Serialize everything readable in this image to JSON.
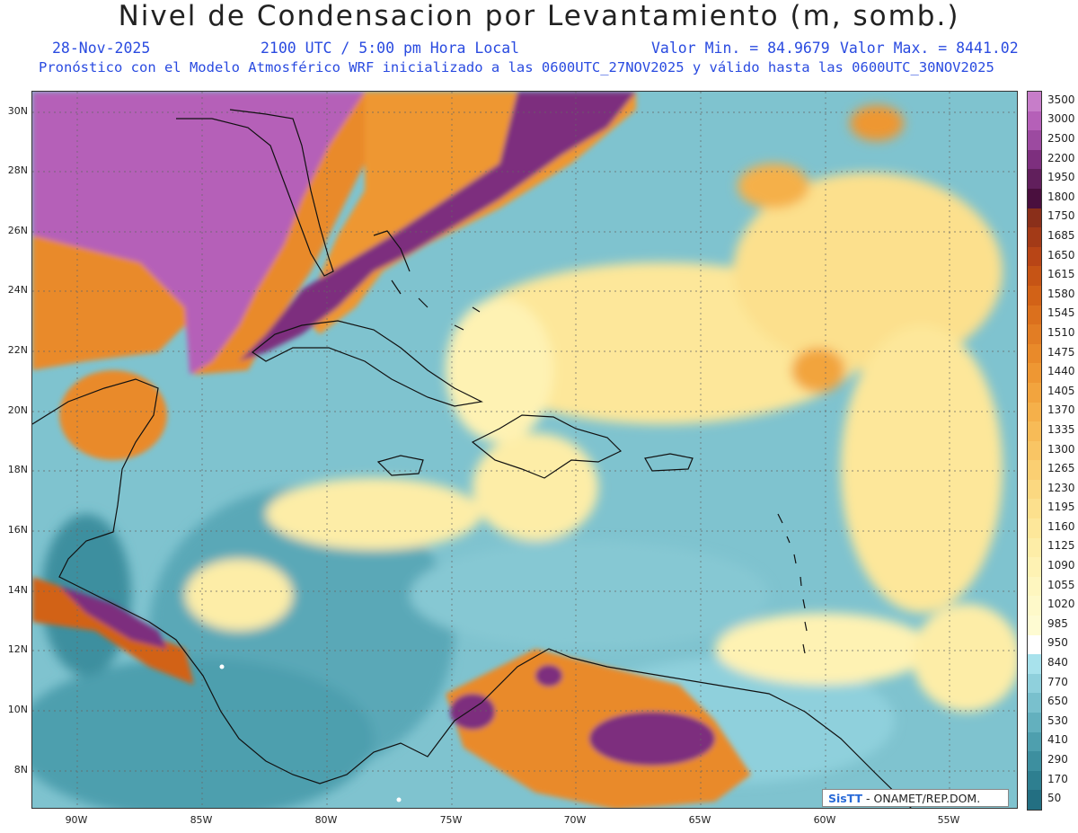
{
  "title": "Nivel de Condensacion por Levantamiento (m, somb.)",
  "header": {
    "date": "28-Nov-2025",
    "time": "2100 UTC / 5:00 pm Hora Local",
    "vmin": "Valor Min. = 84.9679",
    "vmax": "Valor Max. = 8441.02",
    "subtitle": "Pronóstico con el Modelo Atmosférico WRF inicializado a las 0600UTC_27NOV2025 y válido hasta las  0600UTC_30NOV2025"
  },
  "lat_labels": [
    "30N",
    "28N",
    "26N",
    "24N",
    "22N",
    "20N",
    "18N",
    "16N",
    "14N",
    "12N",
    "10N",
    "8N"
  ],
  "lon_labels": [
    "90W",
    "85W",
    "80W",
    "75W",
    "70W",
    "65W",
    "60W",
    "55W"
  ],
  "colorbar": {
    "labels": [
      "3500",
      "3000",
      "2500",
      "2200",
      "1950",
      "1800",
      "1750",
      "1685",
      "1650",
      "1615",
      "1580",
      "1545",
      "1510",
      "1475",
      "1440",
      "1405",
      "1370",
      "1335",
      "1300",
      "1265",
      "1230",
      "1195",
      "1160",
      "1125",
      "1090",
      "1055",
      "1020",
      "985",
      "950",
      "840",
      "770",
      "650",
      "530",
      "410",
      "290",
      "170",
      "50"
    ],
    "colors": [
      "#c77dc9",
      "#b560b8",
      "#9c4aa0",
      "#7d2f7e",
      "#611f5c",
      "#4a0f3e",
      "#8a2f1a",
      "#a33a17",
      "#b84516",
      "#c65415",
      "#d26217",
      "#db701d",
      "#e27d24",
      "#e98a2a",
      "#ee9733",
      "#f2a43e",
      "#f5b04a",
      "#f7bb57",
      "#f9c564",
      "#facf72",
      "#fbd880",
      "#fce08d",
      "#fde79a",
      "#fdeda7",
      "#fef2b3",
      "#fef6bf",
      "#fef9c9",
      "#fefbd2",
      "#ffffff",
      "#a8e2ec",
      "#8fd0dc",
      "#79c0cd",
      "#63b0be",
      "#4e9fae",
      "#3d8f9f",
      "#2e7f90",
      "#236f82"
    ]
  },
  "credit": {
    "brand": "SisTT",
    "text": " - ONAMET/REP.DOM."
  },
  "colors": {
    "ocean_base": "#7fc3cf",
    "land_high": "#b560b8",
    "warm": "#e98a2a",
    "yellow": "#fde79a",
    "coast": "#111111"
  }
}
